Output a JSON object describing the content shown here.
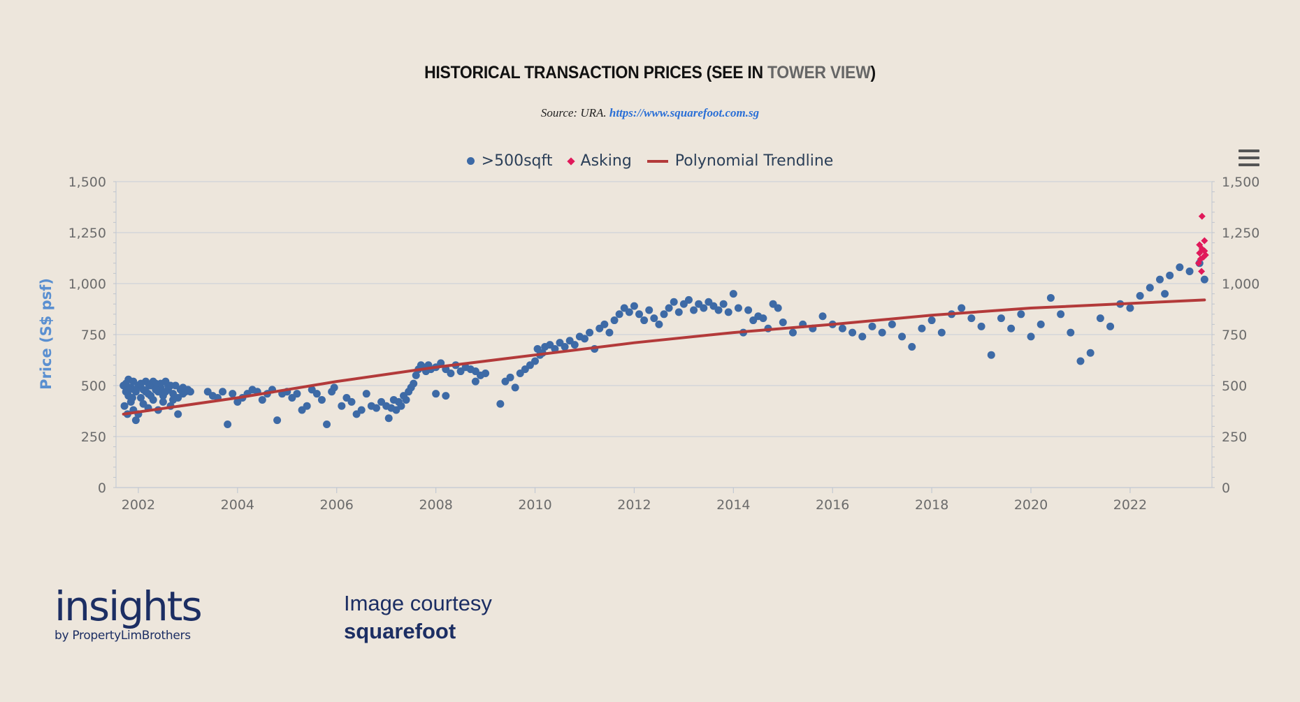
{
  "header": {
    "title_main": "HISTORICAL TRANSACTION PRICES (SEE IN ",
    "title_link": "TOWER VIEW",
    "title_end": ")",
    "source_prefix": "Source: URA.",
    "source_link": "https://www.squarefoot.com.sg"
  },
  "menu": {
    "icon": "hamburger-menu-icon"
  },
  "footer": {
    "brand_main": "insights",
    "brand_sub": "by PropertyLimBrothers",
    "courtesy_line1": "Image courtesy",
    "courtesy_line2": "squarefoot"
  },
  "colors": {
    "transactions": "#3d6aa6",
    "asking": "#e0195a",
    "trendline": "#b33a3a",
    "background": "#ede6dc"
  },
  "chart_data": {
    "type": "scatter",
    "title": "HISTORICAL TRANSACTION PRICES (SEE IN TOWER VIEW)",
    "ylabel": "Price (S$ psf)",
    "xlabel": "",
    "xlim": [
      2001.55,
      2023.65
    ],
    "ylim": [
      0,
      1500
    ],
    "x_ticks": [
      2002,
      2004,
      2006,
      2008,
      2010,
      2012,
      2014,
      2016,
      2018,
      2020,
      2022
    ],
    "y_ticks": [
      0,
      250,
      500,
      750,
      1000,
      1250,
      1500
    ],
    "y_tick_labels": [
      "0",
      "250",
      "500",
      "750",
      "1,000",
      "1,250",
      "1,500"
    ],
    "grid": true,
    "dual_y_axis": true,
    "legend_position": "top-center",
    "series": [
      {
        "name": ">500sqft",
        "marker": "circle",
        "points": [
          [
            2001.7,
            500
          ],
          [
            2001.75,
            470
          ],
          [
            2001.8,
            530
          ],
          [
            2001.85,
            420
          ],
          [
            2001.9,
            380
          ],
          [
            2001.95,
            330
          ],
          [
            2001.75,
            510
          ],
          [
            2001.8,
            450
          ],
          [
            2001.85,
            490
          ],
          [
            2001.9,
            520
          ],
          [
            2001.95,
            470
          ],
          [
            2002.0,
            500
          ],
          [
            2002.05,
            440
          ],
          [
            2002.1,
            480
          ],
          [
            2002.15,
            520
          ],
          [
            2002.2,
            460
          ],
          [
            2002.25,
            500
          ],
          [
            2002.3,
            430
          ],
          [
            2002.35,
            510
          ],
          [
            2002.4,
            470
          ],
          [
            2002.45,
            490
          ],
          [
            2002.5,
            450
          ],
          [
            2002.55,
            520
          ],
          [
            2002.6,
            480
          ],
          [
            2002.65,
            400
          ],
          [
            2002.7,
            460
          ],
          [
            2002.75,
            500
          ],
          [
            2002.8,
            440
          ],
          [
            2002.85,
            480
          ],
          [
            2002.9,
            460
          ],
          [
            2002.95,
            470
          ],
          [
            2003.0,
            480
          ],
          [
            2003.05,
            470
          ],
          [
            2001.72,
            400
          ],
          [
            2001.78,
            360
          ],
          [
            2001.88,
            440
          ],
          [
            2002.0,
            360
          ],
          [
            2002.1,
            410
          ],
          [
            2002.2,
            390
          ],
          [
            2002.3,
            520
          ],
          [
            2002.4,
            380
          ],
          [
            2002.5,
            420
          ],
          [
            2002.6,
            500
          ],
          [
            2002.7,
            430
          ],
          [
            2002.8,
            360
          ],
          [
            2002.9,
            490
          ],
          [
            2001.95,
            480
          ],
          [
            2002.05,
            510
          ],
          [
            2002.15,
            470
          ],
          [
            2002.25,
            450
          ],
          [
            2002.35,
            480
          ],
          [
            2002.45,
            510
          ],
          [
            2002.55,
            470
          ],
          [
            2002.65,
            500
          ],
          [
            2001.82,
            480
          ],
          [
            2002.22,
            500
          ],
          [
            2003.4,
            470
          ],
          [
            2003.5,
            450
          ],
          [
            2003.6,
            440
          ],
          [
            2003.7,
            470
          ],
          [
            2003.8,
            310
          ],
          [
            2003.9,
            460
          ],
          [
            2004.0,
            420
          ],
          [
            2004.1,
            440
          ],
          [
            2004.2,
            460
          ],
          [
            2004.3,
            480
          ],
          [
            2004.4,
            470
          ],
          [
            2004.5,
            430
          ],
          [
            2004.6,
            460
          ],
          [
            2004.7,
            480
          ],
          [
            2004.8,
            330
          ],
          [
            2004.9,
            460
          ],
          [
            2005.0,
            470
          ],
          [
            2005.1,
            440
          ],
          [
            2005.2,
            460
          ],
          [
            2005.3,
            380
          ],
          [
            2005.4,
            400
          ],
          [
            2005.5,
            480
          ],
          [
            2005.6,
            460
          ],
          [
            2005.7,
            430
          ],
          [
            2005.8,
            310
          ],
          [
            2005.9,
            470
          ],
          [
            2005.95,
            490
          ],
          [
            2006.1,
            400
          ],
          [
            2006.2,
            440
          ],
          [
            2006.3,
            420
          ],
          [
            2006.4,
            360
          ],
          [
            2006.5,
            380
          ],
          [
            2006.6,
            460
          ],
          [
            2006.7,
            400
          ],
          [
            2006.8,
            390
          ],
          [
            2006.9,
            420
          ],
          [
            2007.0,
            400
          ],
          [
            2007.05,
            340
          ],
          [
            2007.1,
            390
          ],
          [
            2007.15,
            430
          ],
          [
            2007.2,
            380
          ],
          [
            2007.25,
            420
          ],
          [
            2007.3,
            400
          ],
          [
            2007.35,
            450
          ],
          [
            2007.4,
            430
          ],
          [
            2007.45,
            470
          ],
          [
            2007.5,
            490
          ],
          [
            2007.55,
            510
          ],
          [
            2007.6,
            550
          ],
          [
            2007.65,
            580
          ],
          [
            2007.7,
            600
          ],
          [
            2007.75,
            590
          ],
          [
            2007.8,
            570
          ],
          [
            2007.85,
            600
          ],
          [
            2007.9,
            580
          ],
          [
            2008.0,
            590
          ],
          [
            2008.1,
            610
          ],
          [
            2008.2,
            580
          ],
          [
            2008.3,
            560
          ],
          [
            2008.4,
            600
          ],
          [
            2008.5,
            570
          ],
          [
            2008.6,
            590
          ],
          [
            2008.7,
            580
          ],
          [
            2008.8,
            570
          ],
          [
            2008.9,
            550
          ],
          [
            2009.0,
            560
          ],
          [
            2008.0,
            460
          ],
          [
            2008.2,
            450
          ],
          [
            2008.8,
            520
          ],
          [
            2009.3,
            410
          ],
          [
            2009.4,
            520
          ],
          [
            2009.5,
            540
          ],
          [
            2009.6,
            490
          ],
          [
            2009.7,
            560
          ],
          [
            2009.8,
            580
          ],
          [
            2009.9,
            600
          ],
          [
            2010.0,
            620
          ],
          [
            2010.05,
            680
          ],
          [
            2010.1,
            650
          ],
          [
            2010.15,
            660
          ],
          [
            2010.2,
            690
          ],
          [
            2010.3,
            700
          ],
          [
            2010.4,
            680
          ],
          [
            2010.5,
            710
          ],
          [
            2010.6,
            690
          ],
          [
            2010.7,
            720
          ],
          [
            2010.8,
            700
          ],
          [
            2010.9,
            740
          ],
          [
            2011.0,
            730
          ],
          [
            2011.1,
            760
          ],
          [
            2011.2,
            680
          ],
          [
            2011.3,
            780
          ],
          [
            2011.4,
            800
          ],
          [
            2011.5,
            760
          ],
          [
            2011.6,
            820
          ],
          [
            2011.7,
            850
          ],
          [
            2011.8,
            880
          ],
          [
            2011.9,
            860
          ],
          [
            2012.0,
            890
          ],
          [
            2012.1,
            850
          ],
          [
            2012.2,
            820
          ],
          [
            2012.3,
            870
          ],
          [
            2012.4,
            830
          ],
          [
            2012.5,
            800
          ],
          [
            2012.6,
            850
          ],
          [
            2012.7,
            880
          ],
          [
            2012.8,
            910
          ],
          [
            2012.9,
            860
          ],
          [
            2013.0,
            900
          ],
          [
            2013.1,
            920
          ],
          [
            2013.2,
            870
          ],
          [
            2013.3,
            900
          ],
          [
            2013.4,
            880
          ],
          [
            2013.5,
            910
          ],
          [
            2013.6,
            890
          ],
          [
            2013.7,
            870
          ],
          [
            2013.8,
            900
          ],
          [
            2013.9,
            860
          ],
          [
            2014.0,
            950
          ],
          [
            2014.1,
            880
          ],
          [
            2014.2,
            760
          ],
          [
            2014.3,
            870
          ],
          [
            2014.4,
            820
          ],
          [
            2014.5,
            840
          ],
          [
            2014.6,
            830
          ],
          [
            2014.7,
            780
          ],
          [
            2014.8,
            900
          ],
          [
            2014.9,
            880
          ],
          [
            2015.0,
            810
          ],
          [
            2015.2,
            760
          ],
          [
            2015.4,
            800
          ],
          [
            2015.6,
            780
          ],
          [
            2015.8,
            840
          ],
          [
            2016.0,
            800
          ],
          [
            2016.2,
            780
          ],
          [
            2016.4,
            760
          ],
          [
            2016.6,
            740
          ],
          [
            2016.8,
            790
          ],
          [
            2017.0,
            760
          ],
          [
            2017.2,
            800
          ],
          [
            2017.4,
            740
          ],
          [
            2017.6,
            690
          ],
          [
            2017.8,
            780
          ],
          [
            2018.0,
            820
          ],
          [
            2018.2,
            760
          ],
          [
            2018.4,
            850
          ],
          [
            2018.6,
            880
          ],
          [
            2018.8,
            830
          ],
          [
            2019.0,
            790
          ],
          [
            2019.2,
            650
          ],
          [
            2019.4,
            830
          ],
          [
            2019.6,
            780
          ],
          [
            2019.8,
            850
          ],
          [
            2020.0,
            740
          ],
          [
            2020.2,
            800
          ],
          [
            2020.4,
            930
          ],
          [
            2020.6,
            850
          ],
          [
            2020.8,
            760
          ],
          [
            2021.0,
            620
          ],
          [
            2021.2,
            660
          ],
          [
            2021.4,
            830
          ],
          [
            2021.6,
            790
          ],
          [
            2021.8,
            900
          ],
          [
            2022.0,
            880
          ],
          [
            2022.2,
            940
          ],
          [
            2022.4,
            980
          ],
          [
            2022.6,
            1020
          ],
          [
            2022.7,
            950
          ],
          [
            2022.8,
            1040
          ],
          [
            2023.0,
            1080
          ],
          [
            2023.2,
            1060
          ],
          [
            2023.4,
            1100
          ],
          [
            2023.5,
            1020
          ]
        ]
      },
      {
        "name": "Asking",
        "marker": "diamond",
        "points": [
          [
            2023.45,
            1330
          ],
          [
            2023.4,
            1190
          ],
          [
            2023.45,
            1170
          ],
          [
            2023.5,
            1210
          ],
          [
            2023.4,
            1150
          ],
          [
            2023.48,
            1130
          ],
          [
            2023.42,
            1120
          ],
          [
            2023.52,
            1140
          ],
          [
            2023.38,
            1100
          ],
          [
            2023.5,
            1160
          ],
          [
            2023.44,
            1060
          ]
        ]
      },
      {
        "name": "Polynomial Trendline",
        "type": "line",
        "points": [
          [
            2001.7,
            360
          ],
          [
            2004,
            440
          ],
          [
            2006,
            520
          ],
          [
            2008,
            590
          ],
          [
            2010,
            650
          ],
          [
            2012,
            710
          ],
          [
            2014,
            760
          ],
          [
            2016,
            800
          ],
          [
            2018,
            845
          ],
          [
            2020,
            880
          ],
          [
            2023.5,
            920
          ]
        ]
      }
    ]
  }
}
